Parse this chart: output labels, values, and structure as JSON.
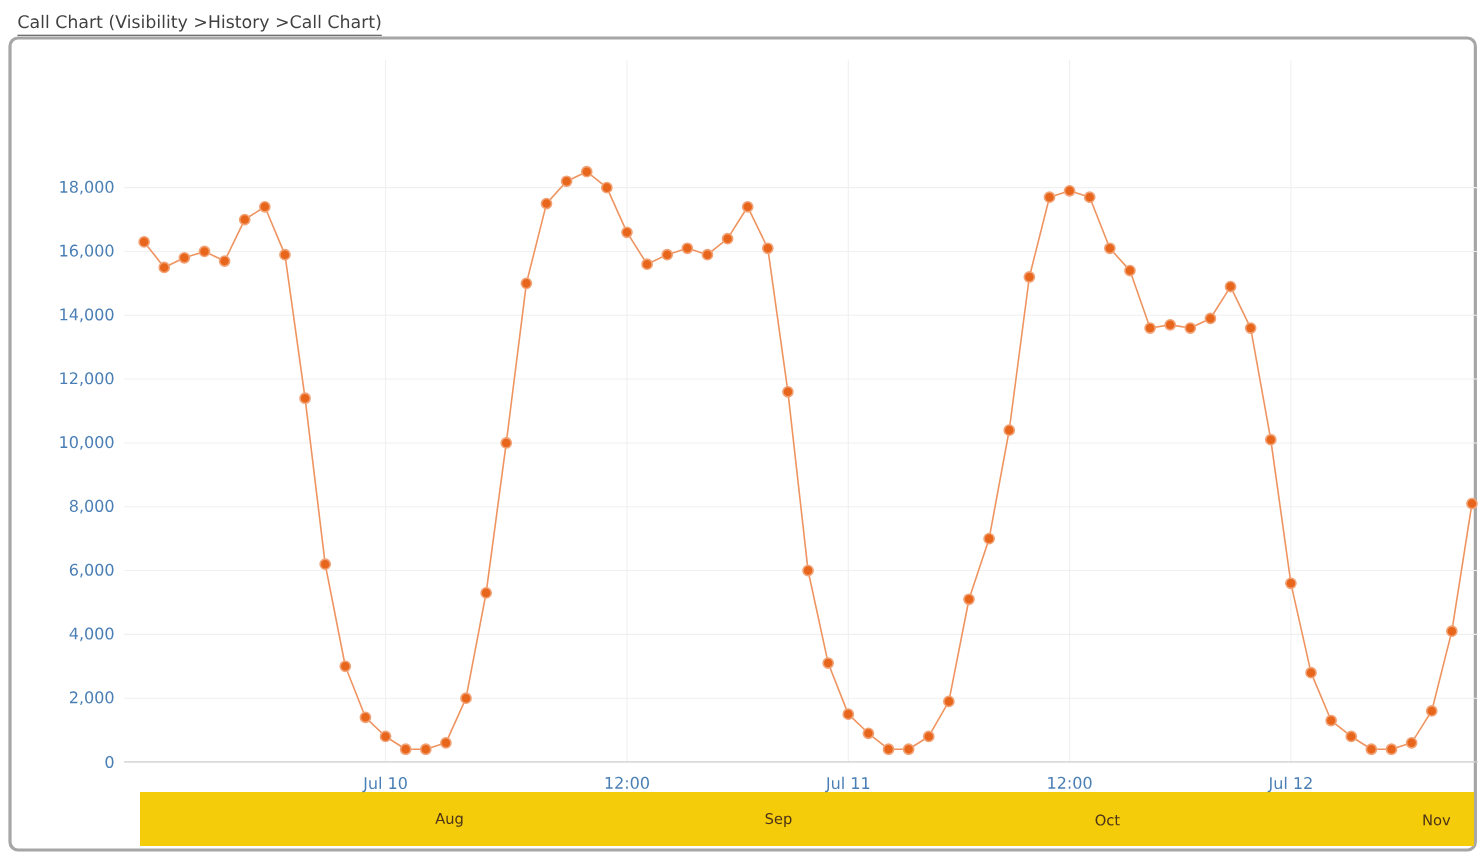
{
  "chart_data": {
    "type": "line",
    "title": "Call Chart (Visibility >History >Call Chart)",
    "categories": [
      null,
      null,
      null,
      null,
      null,
      null,
      null,
      null,
      null,
      null,
      null,
      null,
      "Jul 10",
      null,
      null,
      null,
      null,
      null,
      null,
      null,
      null,
      null,
      null,
      null,
      "12:00",
      null,
      null,
      null,
      null,
      null,
      null,
      null,
      null,
      null,
      null,
      "Jul 11",
      null,
      null,
      null,
      null,
      null,
      null,
      null,
      null,
      null,
      null,
      "12:00",
      null,
      null,
      null,
      null,
      null,
      null,
      null,
      null,
      null,
      null,
      "Jul 12",
      null,
      null,
      null,
      null,
      null,
      null,
      null,
      null,
      null
    ],
    "series": [
      {
        "color": "#e8661c",
        "values": [
          16300,
          15500,
          15800,
          16000,
          15700,
          17000,
          17400,
          15900,
          11400,
          6200,
          3000,
          1400,
          800,
          400,
          400,
          600,
          2000,
          5300,
          10000,
          15000,
          17500,
          18200,
          18500,
          18000,
          16600,
          15600,
          15900,
          16100,
          15900,
          16400,
          17400,
          16100,
          11600,
          6000,
          3100,
          1500,
          900,
          400,
          400,
          800,
          1900,
          5100,
          7000,
          10400,
          15200,
          17700,
          17900,
          17700,
          16100,
          15400,
          13600,
          13700,
          13600,
          13900,
          14900,
          13600,
          10100,
          5600,
          2800,
          1300,
          800,
          400,
          400,
          600,
          1600,
          4100,
          8100
        ]
      }
    ],
    "ylim": [
      0,
      22000
    ],
    "yticks": [
      {
        "value": 0,
        "label": "0"
      },
      {
        "value": 2000,
        "label": "2,000"
      },
      {
        "value": 4000,
        "label": "4,000"
      },
      {
        "value": 6000,
        "label": "6,000"
      },
      {
        "value": 8000,
        "label": "8,000"
      },
      {
        "value": 10000,
        "label": "10,000"
      },
      {
        "value": 12000,
        "label": "12,000"
      },
      {
        "value": 14000,
        "label": "14,000"
      },
      {
        "value": 16000,
        "label": "16,000"
      },
      {
        "value": 18000,
        "label": "18,000"
      }
    ],
    "annotations": [
      "Aug",
      "Sep",
      "Oct",
      "Nov"
    ],
    "grid": true,
    "marker": "circle",
    "line_style": "solid"
  }
}
